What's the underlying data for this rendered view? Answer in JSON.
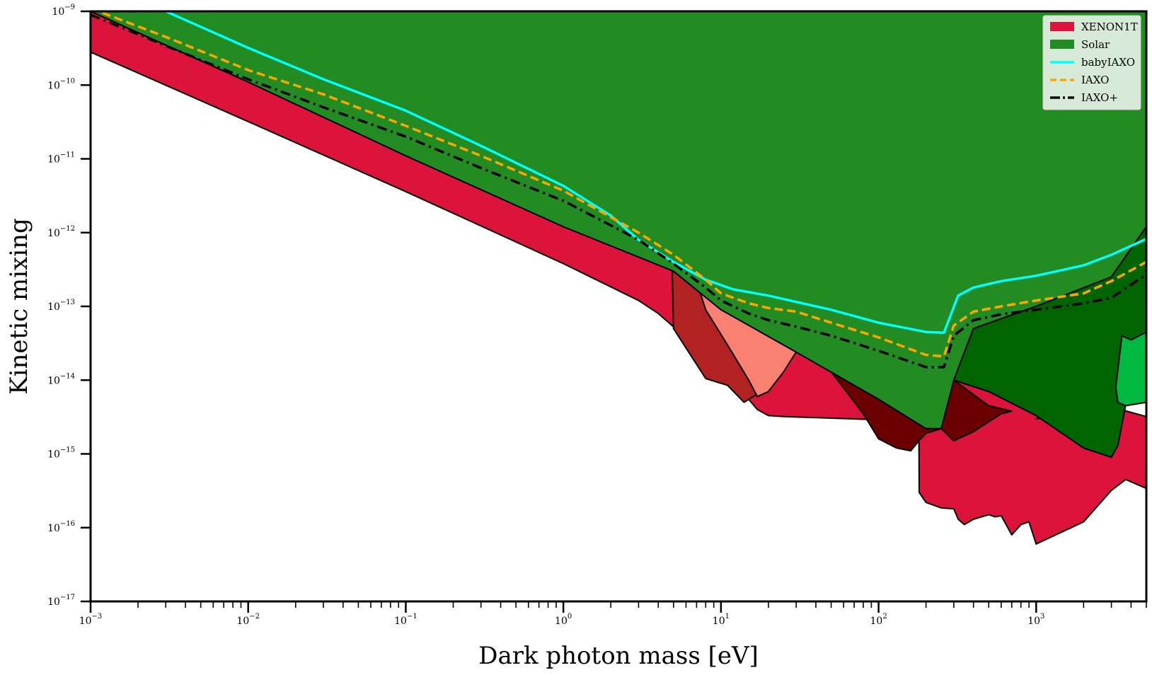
{
  "chart_data": {
    "type": "area",
    "xlabel": "Dark photon mass [eV]",
    "ylabel": "Kinetic mixing",
    "xscale": "log",
    "yscale": "log",
    "xlim": [
      0.001,
      5000
    ],
    "ylim": [
      1e-17,
      1e-09
    ],
    "x_ticks": [
      {
        "value": 0.001,
        "base": "10",
        "exp": "−3"
      },
      {
        "value": 0.01,
        "base": "10",
        "exp": "−2"
      },
      {
        "value": 0.1,
        "base": "10",
        "exp": "−1"
      },
      {
        "value": 1,
        "base": "10",
        "exp": "0"
      },
      {
        "value": 10,
        "base": "10",
        "exp": "1"
      },
      {
        "value": 100,
        "base": "10",
        "exp": "2"
      },
      {
        "value": 1000,
        "base": "10",
        "exp": "3"
      }
    ],
    "y_ticks": [
      {
        "value": 1e-09,
        "base": "10",
        "exp": "−9"
      },
      {
        "value": 1e-10,
        "base": "10",
        "exp": "−10"
      },
      {
        "value": 1e-11,
        "base": "10",
        "exp": "−11"
      },
      {
        "value": 1e-12,
        "base": "10",
        "exp": "−12"
      },
      {
        "value": 1e-13,
        "base": "10",
        "exp": "−13"
      },
      {
        "value": 1e-14,
        "base": "10",
        "exp": "−14"
      },
      {
        "value": 1e-15,
        "base": "10",
        "exp": "−15"
      },
      {
        "value": 1e-16,
        "base": "10",
        "exp": "−16"
      },
      {
        "value": 1e-17,
        "base": "10",
        "exp": "−17"
      }
    ],
    "legend_position": "top-right",
    "legend": [
      {
        "label": "XENON1T",
        "kind": "patch",
        "color": "#dc143c"
      },
      {
        "label": "Solar",
        "kind": "patch",
        "color": "#228b22"
      },
      {
        "label": "babyIAXO",
        "kind": "line",
        "color": "#00ffff",
        "dash": "solid"
      },
      {
        "label": "IAXO",
        "kind": "line",
        "color": "#ffa500",
        "dash": "dashed"
      },
      {
        "label": "IAXO+",
        "kind": "line",
        "color": "#000000",
        "dash": "dashdot"
      }
    ],
    "regions": [
      {
        "name": "XENON1T",
        "color": "#dc143c",
        "points": [
          [
            0.001,
            2.8e-10
          ],
          [
            0.01,
            3.2e-11
          ],
          [
            0.1,
            3.6e-12
          ],
          [
            1,
            3.8e-13
          ],
          [
            3,
            1.2e-13
          ],
          [
            4,
            8e-14
          ],
          [
            8,
            2.2e-14
          ],
          [
            12,
            1.3e-14
          ],
          [
            15,
            5.5e-15
          ],
          [
            17,
            4e-15
          ],
          [
            20,
            3.3e-15
          ],
          [
            25,
            3.2e-15
          ],
          [
            40,
            3.1e-15
          ],
          [
            100,
            2.9e-15
          ],
          [
            160,
            2.6e-15
          ],
          [
            180,
            2.5e-15
          ],
          [
            181,
            3e-16
          ],
          [
            200,
            2.2e-16
          ],
          [
            250,
            1.85e-16
          ],
          [
            300,
            1.8e-16
          ],
          [
            320,
            1.3e-16
          ],
          [
            350,
            1.1e-16
          ],
          [
            400,
            1.3e-16
          ],
          [
            500,
            1.5e-16
          ],
          [
            550,
            1.4e-16
          ],
          [
            600,
            1.45e-16
          ],
          [
            700,
            8e-17
          ],
          [
            800,
            1.1e-16
          ],
          [
            900,
            1.2e-16
          ],
          [
            1000,
            6e-17
          ],
          [
            2000,
            1.2e-16
          ],
          [
            3000,
            3.2e-16
          ],
          [
            3700,
            4.5e-16
          ],
          [
            5000,
            3.4e-16
          ],
          [
            5000,
            3.2e-15
          ],
          [
            2600,
            4.7e-15
          ],
          [
            1000,
            3e-15
          ],
          [
            2000,
            3.2e-15
          ],
          [
            5000,
            1.6e-11
          ],
          [
            5000,
            1e-09
          ],
          [
            0.001,
            1e-09
          ]
        ]
      },
      {
        "name": "dark-red-region",
        "color": "#b22222",
        "points": [
          [
            4.9,
            3.5e-13
          ],
          [
            7,
            2.3e-13
          ],
          [
            10,
            6e-14
          ],
          [
            13,
            2.6e-14
          ],
          [
            16,
            1.3e-14
          ],
          [
            18,
            7e-15
          ],
          [
            14,
            5e-15
          ],
          [
            11,
            8.5e-15
          ],
          [
            8,
            1.05e-14
          ],
          [
            5,
            5e-14
          ]
        ]
      },
      {
        "name": "salmon-region",
        "color": "#fa8072",
        "points": [
          [
            7,
            2.2e-13
          ],
          [
            9,
            1.3e-13
          ],
          [
            12,
            8e-14
          ],
          [
            20,
            4.5e-14
          ],
          [
            30,
            2.4e-14
          ],
          [
            25,
            1.3e-14
          ],
          [
            20,
            7e-15
          ],
          [
            17,
            6e-15
          ],
          [
            15,
            1e-14
          ],
          [
            11,
            3e-14
          ],
          [
            8,
            9e-14
          ]
        ]
      },
      {
        "name": "maroon-region",
        "color": "#6b0000",
        "points": [
          [
            50,
            1.3e-14
          ],
          [
            80,
            3.5e-15
          ],
          [
            100,
            1.6e-15
          ],
          [
            130,
            1.2e-15
          ],
          [
            160,
            1.1e-15
          ],
          [
            180,
            1.5e-15
          ],
          [
            200,
            1.9e-15
          ],
          [
            250,
            2.2e-15
          ],
          [
            300,
            1.5e-15
          ],
          [
            400,
            2e-15
          ],
          [
            600,
            3.5e-15
          ],
          [
            700,
            3.8e-15
          ],
          [
            500,
            4.5e-15
          ],
          [
            300,
            1e-14
          ],
          [
            200,
            1.3e-14
          ],
          [
            100,
            1.4e-14
          ]
        ]
      },
      {
        "name": "Solar",
        "color": "#228b22",
        "points": [
          [
            0.001,
            1e-09
          ],
          [
            5000,
            1e-09
          ],
          [
            5000,
            1.2e-12
          ],
          [
            3000,
            2.5e-13
          ],
          [
            1000,
            1e-13
          ],
          [
            400,
            5e-14
          ],
          [
            300,
            1e-14
          ],
          [
            250,
            2.2e-15
          ],
          [
            200,
            2.2e-15
          ],
          [
            100,
            5.5e-15
          ],
          [
            30,
            2.4e-14
          ],
          [
            10,
            9e-14
          ],
          [
            5,
            3e-13
          ],
          [
            1,
            1.2e-12
          ],
          [
            0.1,
            1.1e-11
          ],
          [
            0.01,
            1.1e-10
          ]
        ]
      },
      {
        "name": "dark-green-region",
        "color": "#006400",
        "points": [
          [
            5000,
            1.2e-12
          ],
          [
            3000,
            2.5e-13
          ],
          [
            1000,
            1e-13
          ],
          [
            400,
            5e-14
          ],
          [
            300,
            1e-14
          ],
          [
            500,
            7e-15
          ],
          [
            1000,
            3.3e-15
          ],
          [
            2000,
            1.2e-15
          ],
          [
            3000,
            9e-16
          ],
          [
            3300,
            1.3e-15
          ],
          [
            4000,
            1.1e-14
          ],
          [
            5000,
            4.5e-14
          ]
        ]
      },
      {
        "name": "bright-green-region",
        "color": "#00b940",
        "points": [
          [
            5000,
            4.5e-14
          ],
          [
            4000,
            3.5e-14
          ],
          [
            3500,
            4e-14
          ],
          [
            3200,
            8e-15
          ],
          [
            3300,
            5e-15
          ],
          [
            3700,
            4.5e-15
          ],
          [
            5000,
            5e-15
          ]
        ]
      }
    ],
    "series": [
      {
        "name": "babyIAXO",
        "color": "#00ffff",
        "dash": "solid",
        "x": [
          0.003,
          0.01,
          0.03,
          0.1,
          0.3,
          1,
          2,
          3,
          5,
          8,
          12,
          20,
          50,
          100,
          200,
          260,
          320,
          400,
          600,
          1000,
          2000,
          3000,
          5000
        ],
        "y": [
          1e-09,
          3.2e-10,
          1.2e-10,
          4.5e-11,
          1.5e-11,
          4.3e-12,
          1.7e-12,
          8e-13,
          4e-13,
          2.3e-13,
          1.7e-13,
          1.4e-13,
          9e-14,
          6e-14,
          4.5e-14,
          4.4e-14,
          1.4e-13,
          1.8e-13,
          2.2e-13,
          2.6e-13,
          3.6e-13,
          5e-13,
          8.2e-13
        ]
      },
      {
        "name": "IAXO",
        "color": "#ffa500",
        "dash": "dashed",
        "x": [
          0.001,
          0.003,
          0.01,
          0.03,
          0.1,
          0.3,
          1,
          3,
          5,
          8,
          10,
          15,
          20,
          30,
          50,
          100,
          200,
          260,
          300,
          400,
          600,
          1000,
          2000,
          3000,
          5000
        ],
        "y": [
          1.1e-09,
          4.5e-10,
          1.6e-10,
          7.5e-11,
          2.8e-11,
          1.1e-11,
          3.7e-12,
          1e-12,
          5e-13,
          2.3e-13,
          1.5e-13,
          1.1e-13,
          9.5e-14,
          8.5e-14,
          6e-14,
          3.8e-14,
          2.2e-14,
          2.1e-14,
          5.5e-14,
          8.5e-14,
          1e-13,
          1.2e-13,
          1.5e-13,
          2.2e-13,
          4e-13
        ]
      },
      {
        "name": "IAXO+",
        "color": "#000000",
        "dash": "dashdot",
        "x": [
          0.001,
          0.003,
          0.01,
          0.03,
          0.1,
          0.3,
          1,
          3,
          5,
          8,
          10,
          15,
          20,
          30,
          50,
          100,
          200,
          260,
          300,
          400,
          600,
          1000,
          2000,
          3000,
          5000
        ],
        "y": [
          9e-10,
          3.4e-10,
          1.2e-10,
          5e-11,
          2e-11,
          7.5e-12,
          2.7e-12,
          8e-13,
          3.8e-13,
          1.8e-13,
          1.2e-13,
          8e-14,
          6.5e-14,
          5.3e-14,
          4e-14,
          2.5e-14,
          1.5e-14,
          1.5e-14,
          4e-14,
          6.5e-14,
          7.8e-14,
          9e-14,
          1.1e-13,
          1.3e-13,
          2.7e-13
        ]
      }
    ]
  }
}
